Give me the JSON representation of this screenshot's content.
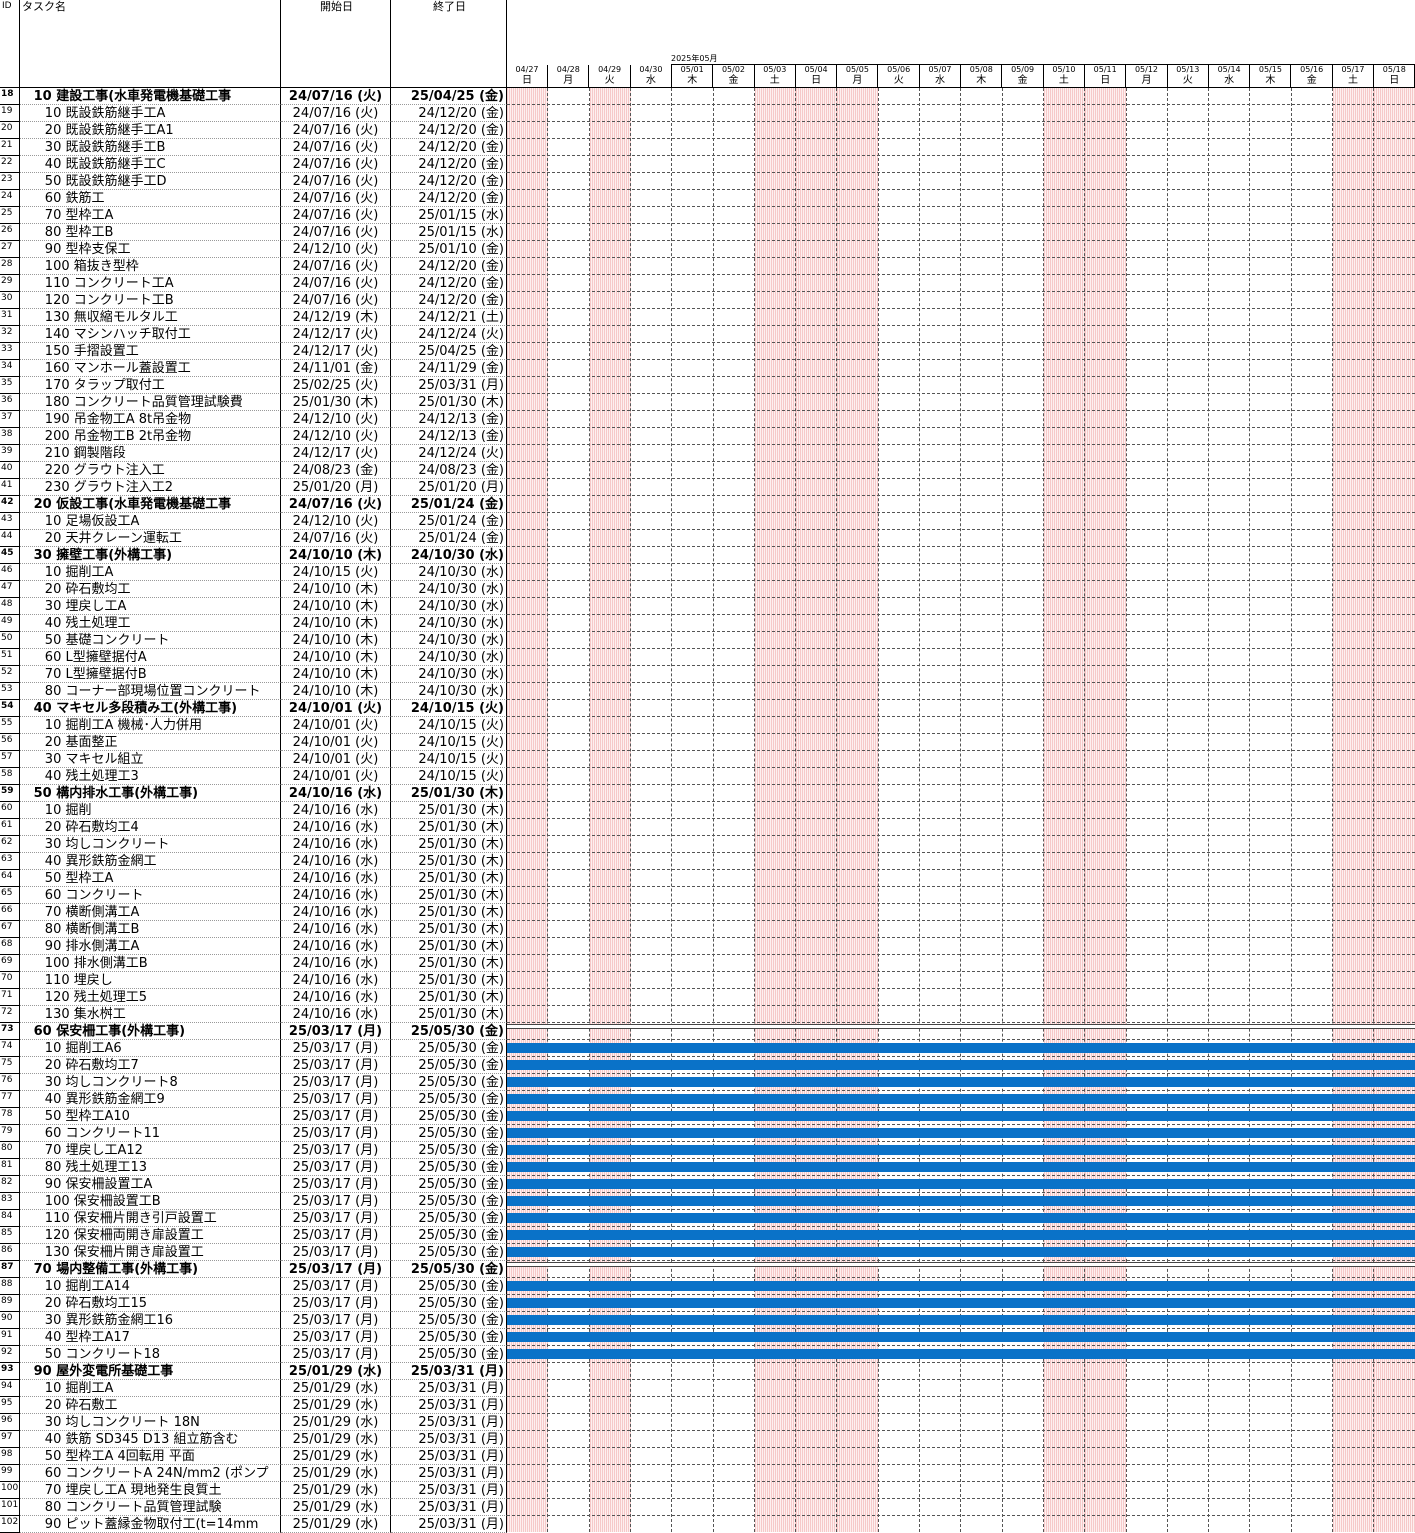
{
  "headers": {
    "id": "ID",
    "name": "タスク名",
    "start": "開始日",
    "end": "終了日",
    "month": "2025年05月"
  },
  "days": [
    {
      "date": "04/27",
      "wd": "日",
      "weekend": true
    },
    {
      "date": "04/28",
      "wd": "月",
      "weekend": false
    },
    {
      "date": "04/29",
      "wd": "火",
      "weekend": true
    },
    {
      "date": "04/30",
      "wd": "水",
      "weekend": false
    },
    {
      "date": "05/01",
      "wd": "木",
      "weekend": false
    },
    {
      "date": "05/02",
      "wd": "金",
      "weekend": false
    },
    {
      "date": "05/03",
      "wd": "土",
      "weekend": true
    },
    {
      "date": "05/04",
      "wd": "日",
      "weekend": true
    },
    {
      "date": "05/05",
      "wd": "月",
      "weekend": true
    },
    {
      "date": "05/06",
      "wd": "火",
      "weekend": false
    },
    {
      "date": "05/07",
      "wd": "水",
      "weekend": false
    },
    {
      "date": "05/08",
      "wd": "木",
      "weekend": false
    },
    {
      "date": "05/09",
      "wd": "金",
      "weekend": false
    },
    {
      "date": "05/10",
      "wd": "土",
      "weekend": true
    },
    {
      "date": "05/11",
      "wd": "日",
      "weekend": true
    },
    {
      "date": "05/12",
      "wd": "月",
      "weekend": false
    },
    {
      "date": "05/13",
      "wd": "火",
      "weekend": false
    },
    {
      "date": "05/14",
      "wd": "水",
      "weekend": false
    },
    {
      "date": "05/15",
      "wd": "木",
      "weekend": false
    },
    {
      "date": "05/16",
      "wd": "金",
      "weekend": false
    },
    {
      "date": "05/17",
      "wd": "土",
      "weekend": true
    },
    {
      "date": "05/18",
      "wd": "日",
      "weekend": true
    }
  ],
  "rows": [
    {
      "id": "18",
      "name": "10 建設工事(水車発電機基礎工事",
      "start": "24/07/16 (火)",
      "end": "25/04/25 (金)",
      "summary": true,
      "bar": false
    },
    {
      "id": "19",
      "name": "10 既設鉄筋継手工A",
      "start": "24/07/16 (火)",
      "end": "24/12/20 (金)",
      "summary": false,
      "bar": false
    },
    {
      "id": "20",
      "name": "20 既設鉄筋継手工A1",
      "start": "24/07/16 (火)",
      "end": "24/12/20 (金)",
      "summary": false,
      "bar": false
    },
    {
      "id": "21",
      "name": "30 既設鉄筋継手工B",
      "start": "24/07/16 (火)",
      "end": "24/12/20 (金)",
      "summary": false,
      "bar": false
    },
    {
      "id": "22",
      "name": "40 既設鉄筋継手工C",
      "start": "24/07/16 (火)",
      "end": "24/12/20 (金)",
      "summary": false,
      "bar": false
    },
    {
      "id": "23",
      "name": "50 既設鉄筋継手工D",
      "start": "24/07/16 (火)",
      "end": "24/12/20 (金)",
      "summary": false,
      "bar": false
    },
    {
      "id": "24",
      "name": "60 鉄筋工",
      "start": "24/07/16 (火)",
      "end": "24/12/20 (金)",
      "summary": false,
      "bar": false
    },
    {
      "id": "25",
      "name": "70 型枠工A",
      "start": "24/07/16 (火)",
      "end": "25/01/15 (水)",
      "summary": false,
      "bar": false
    },
    {
      "id": "26",
      "name": "80 型枠工B",
      "start": "24/07/16 (火)",
      "end": "25/01/15 (水)",
      "summary": false,
      "bar": false
    },
    {
      "id": "27",
      "name": "90 型枠支保工",
      "start": "24/12/10 (火)",
      "end": "25/01/10 (金)",
      "summary": false,
      "bar": false
    },
    {
      "id": "28",
      "name": "100 箱抜き型枠",
      "start": "24/07/16 (火)",
      "end": "24/12/20 (金)",
      "summary": false,
      "bar": false
    },
    {
      "id": "29",
      "name": "110 コンクリート工A",
      "start": "24/07/16 (火)",
      "end": "24/12/20 (金)",
      "summary": false,
      "bar": false
    },
    {
      "id": "30",
      "name": "120 コンクリート工B",
      "start": "24/07/16 (火)",
      "end": "24/12/20 (金)",
      "summary": false,
      "bar": false
    },
    {
      "id": "31",
      "name": "130 無収縮モルタル工",
      "start": "24/12/19 (木)",
      "end": "24/12/21 (土)",
      "summary": false,
      "bar": false
    },
    {
      "id": "32",
      "name": "140 マシンハッチ取付工",
      "start": "24/12/17 (火)",
      "end": "24/12/24 (火)",
      "summary": false,
      "bar": false
    },
    {
      "id": "33",
      "name": "150 手摺設置工",
      "start": "24/12/17 (火)",
      "end": "25/04/25 (金)",
      "summary": false,
      "bar": false
    },
    {
      "id": "34",
      "name": "160 マンホール蓋設置工",
      "start": "24/11/01 (金)",
      "end": "24/11/29 (金)",
      "summary": false,
      "bar": false
    },
    {
      "id": "35",
      "name": "170 タラップ取付工",
      "start": "25/02/25 (火)",
      "end": "25/03/31 (月)",
      "summary": false,
      "bar": false
    },
    {
      "id": "36",
      "name": "180 コンクリート品質管理試験費",
      "start": "25/01/30 (木)",
      "end": "25/01/30 (木)",
      "summary": false,
      "bar": false
    },
    {
      "id": "37",
      "name": "190 吊金物工A 8t吊金物",
      "start": "24/12/10 (火)",
      "end": "24/12/13 (金)",
      "summary": false,
      "bar": false
    },
    {
      "id": "38",
      "name": "200 吊金物工B 2t吊金物",
      "start": "24/12/10 (火)",
      "end": "24/12/13 (金)",
      "summary": false,
      "bar": false
    },
    {
      "id": "39",
      "name": "210 鋼製階段",
      "start": "24/12/17 (火)",
      "end": "24/12/24 (火)",
      "summary": false,
      "bar": false
    },
    {
      "id": "40",
      "name": "220 グラウト注入工",
      "start": "24/08/23 (金)",
      "end": "24/08/23 (金)",
      "summary": false,
      "bar": false
    },
    {
      "id": "41",
      "name": "230 グラウト注入工2",
      "start": "25/01/20 (月)",
      "end": "25/01/20 (月)",
      "summary": false,
      "bar": false
    },
    {
      "id": "42",
      "name": "20 仮設工事(水車発電機基礎工事",
      "start": "24/07/16 (火)",
      "end": "25/01/24 (金)",
      "summary": true,
      "bar": false
    },
    {
      "id": "43",
      "name": "10 足場仮設工A",
      "start": "24/12/10 (火)",
      "end": "25/01/24 (金)",
      "summary": false,
      "bar": false
    },
    {
      "id": "44",
      "name": "20 天井クレーン運転工",
      "start": "24/07/16 (火)",
      "end": "25/01/24 (金)",
      "summary": false,
      "bar": false
    },
    {
      "id": "45",
      "name": "30 擁壁工事(外構工事)",
      "start": "24/10/10 (木)",
      "end": "24/10/30 (水)",
      "summary": true,
      "bar": false
    },
    {
      "id": "46",
      "name": "10 掘削工A",
      "start": "24/10/15 (火)",
      "end": "24/10/30 (水)",
      "summary": false,
      "bar": false
    },
    {
      "id": "47",
      "name": "20 砕石敷均工",
      "start": "24/10/10 (木)",
      "end": "24/10/30 (水)",
      "summary": false,
      "bar": false
    },
    {
      "id": "48",
      "name": "30 埋戻し工A",
      "start": "24/10/10 (木)",
      "end": "24/10/30 (水)",
      "summary": false,
      "bar": false
    },
    {
      "id": "49",
      "name": "40 残土処理工",
      "start": "24/10/10 (木)",
      "end": "24/10/30 (水)",
      "summary": false,
      "bar": false
    },
    {
      "id": "50",
      "name": "50 基礎コンクリート",
      "start": "24/10/10 (木)",
      "end": "24/10/30 (水)",
      "summary": false,
      "bar": false
    },
    {
      "id": "51",
      "name": "60 L型擁壁据付A",
      "start": "24/10/10 (木)",
      "end": "24/10/30 (水)",
      "summary": false,
      "bar": false
    },
    {
      "id": "52",
      "name": "70 L型擁壁据付B",
      "start": "24/10/10 (木)",
      "end": "24/10/30 (水)",
      "summary": false,
      "bar": false
    },
    {
      "id": "53",
      "name": "80 コーナー部現場位置コンクリート",
      "start": "24/10/10 (木)",
      "end": "24/10/30 (水)",
      "summary": false,
      "bar": false
    },
    {
      "id": "54",
      "name": "40 マキセル多段積み工(外構工事)",
      "start": "24/10/01 (火)",
      "end": "24/10/15 (火)",
      "summary": true,
      "bar": false
    },
    {
      "id": "55",
      "name": "10 掘削工A 機械･人力併用",
      "start": "24/10/01 (火)",
      "end": "24/10/15 (火)",
      "summary": false,
      "bar": false
    },
    {
      "id": "56",
      "name": "20 基面整正",
      "start": "24/10/01 (火)",
      "end": "24/10/15 (火)",
      "summary": false,
      "bar": false
    },
    {
      "id": "57",
      "name": "30 マキセル組立",
      "start": "24/10/01 (火)",
      "end": "24/10/15 (火)",
      "summary": false,
      "bar": false
    },
    {
      "id": "58",
      "name": "40 残土処理工3",
      "start": "24/10/01 (火)",
      "end": "24/10/15 (火)",
      "summary": false,
      "bar": false
    },
    {
      "id": "59",
      "name": "50 構内排水工事(外構工事)",
      "start": "24/10/16 (水)",
      "end": "25/01/30 (木)",
      "summary": true,
      "bar": false
    },
    {
      "id": "60",
      "name": "10 掘削",
      "start": "24/10/16 (水)",
      "end": "25/01/30 (木)",
      "summary": false,
      "bar": false
    },
    {
      "id": "61",
      "name": "20 砕石敷均工4",
      "start": "24/10/16 (水)",
      "end": "25/01/30 (木)",
      "summary": false,
      "bar": false
    },
    {
      "id": "62",
      "name": "30 均しコンクリート",
      "start": "24/10/16 (水)",
      "end": "25/01/30 (木)",
      "summary": false,
      "bar": false
    },
    {
      "id": "63",
      "name": "40 異形鉄筋金網工",
      "start": "24/10/16 (水)",
      "end": "25/01/30 (木)",
      "summary": false,
      "bar": false
    },
    {
      "id": "64",
      "name": "50 型枠工A",
      "start": "24/10/16 (水)",
      "end": "25/01/30 (木)",
      "summary": false,
      "bar": false
    },
    {
      "id": "65",
      "name": "60 コンクリート",
      "start": "24/10/16 (水)",
      "end": "25/01/30 (木)",
      "summary": false,
      "bar": false
    },
    {
      "id": "66",
      "name": "70 横断側溝工A",
      "start": "24/10/16 (水)",
      "end": "25/01/30 (木)",
      "summary": false,
      "bar": false
    },
    {
      "id": "67",
      "name": "80 横断側溝工B",
      "start": "24/10/16 (水)",
      "end": "25/01/30 (木)",
      "summary": false,
      "bar": false
    },
    {
      "id": "68",
      "name": "90 排水側溝工A",
      "start": "24/10/16 (水)",
      "end": "25/01/30 (木)",
      "summary": false,
      "bar": false
    },
    {
      "id": "69",
      "name": "100 排水側溝工B",
      "start": "24/10/16 (水)",
      "end": "25/01/30 (木)",
      "summary": false,
      "bar": false
    },
    {
      "id": "70",
      "name": "110 埋戻し",
      "start": "24/10/16 (水)",
      "end": "25/01/30 (木)",
      "summary": false,
      "bar": false
    },
    {
      "id": "71",
      "name": "120 残土処理工5",
      "start": "24/10/16 (水)",
      "end": "25/01/30 (木)",
      "summary": false,
      "bar": false
    },
    {
      "id": "72",
      "name": "130 集水桝工",
      "start": "24/10/16 (水)",
      "end": "25/01/30 (木)",
      "summary": false,
      "bar": false
    },
    {
      "id": "73",
      "name": "60 保安柵工事(外構工事)",
      "start": "25/03/17 (月)",
      "end": "25/05/30 (金)",
      "summary": true,
      "bar": true
    },
    {
      "id": "74",
      "name": "10 掘削工A6",
      "start": "25/03/17 (月)",
      "end": "25/05/30 (金)",
      "summary": false,
      "bar": true
    },
    {
      "id": "75",
      "name": "20 砕石敷均工7",
      "start": "25/03/17 (月)",
      "end": "25/05/30 (金)",
      "summary": false,
      "bar": true
    },
    {
      "id": "76",
      "name": "30 均しコンクリート8",
      "start": "25/03/17 (月)",
      "end": "25/05/30 (金)",
      "summary": false,
      "bar": true
    },
    {
      "id": "77",
      "name": "40 異形鉄筋金網工9",
      "start": "25/03/17 (月)",
      "end": "25/05/30 (金)",
      "summary": false,
      "bar": true
    },
    {
      "id": "78",
      "name": "50 型枠工A10",
      "start": "25/03/17 (月)",
      "end": "25/05/30 (金)",
      "summary": false,
      "bar": true
    },
    {
      "id": "79",
      "name": "60 コンクリート11",
      "start": "25/03/17 (月)",
      "end": "25/05/30 (金)",
      "summary": false,
      "bar": true
    },
    {
      "id": "80",
      "name": "70 埋戻し工A12",
      "start": "25/03/17 (月)",
      "end": "25/05/30 (金)",
      "summary": false,
      "bar": true
    },
    {
      "id": "81",
      "name": "80 残土処理工13",
      "start": "25/03/17 (月)",
      "end": "25/05/30 (金)",
      "summary": false,
      "bar": true
    },
    {
      "id": "82",
      "name": "90 保安柵設置工A",
      "start": "25/03/17 (月)",
      "end": "25/05/30 (金)",
      "summary": false,
      "bar": true
    },
    {
      "id": "83",
      "name": "100 保安柵設置工B",
      "start": "25/03/17 (月)",
      "end": "25/05/30 (金)",
      "summary": false,
      "bar": true
    },
    {
      "id": "84",
      "name": "110 保安柵片開き引戸設置工",
      "start": "25/03/17 (月)",
      "end": "25/05/30 (金)",
      "summary": false,
      "bar": true
    },
    {
      "id": "85",
      "name": "120 保安柵両開き扉設置工",
      "start": "25/03/17 (月)",
      "end": "25/05/30 (金)",
      "summary": false,
      "bar": true
    },
    {
      "id": "86",
      "name": "130 保安柵片開き扉設置工",
      "start": "25/03/17 (月)",
      "end": "25/05/30 (金)",
      "summary": false,
      "bar": true
    },
    {
      "id": "87",
      "name": "70 場内整備工事(外構工事)",
      "start": "25/03/17 (月)",
      "end": "25/05/30 (金)",
      "summary": true,
      "bar": true
    },
    {
      "id": "88",
      "name": "10 掘削工A14",
      "start": "25/03/17 (月)",
      "end": "25/05/30 (金)",
      "summary": false,
      "bar": true
    },
    {
      "id": "89",
      "name": "20 砕石敷均工15",
      "start": "25/03/17 (月)",
      "end": "25/05/30 (金)",
      "summary": false,
      "bar": true
    },
    {
      "id": "90",
      "name": "30 異形鉄筋金網工16",
      "start": "25/03/17 (月)",
      "end": "25/05/30 (金)",
      "summary": false,
      "bar": true
    },
    {
      "id": "91",
      "name": "40 型枠工A17",
      "start": "25/03/17 (月)",
      "end": "25/05/30 (金)",
      "summary": false,
      "bar": true
    },
    {
      "id": "92",
      "name": "50 コンクリート18",
      "start": "25/03/17 (月)",
      "end": "25/05/30 (金)",
      "summary": false,
      "bar": true
    },
    {
      "id": "93",
      "name": "90 屋外変電所基礎工事",
      "start": "25/01/29 (水)",
      "end": "25/03/31 (月)",
      "summary": true,
      "bar": false
    },
    {
      "id": "94",
      "name": "10 掘削工A",
      "start": "25/01/29 (水)",
      "end": "25/03/31 (月)",
      "summary": false,
      "bar": false
    },
    {
      "id": "95",
      "name": "20 砕石敷工",
      "start": "25/01/29 (水)",
      "end": "25/03/31 (月)",
      "summary": false,
      "bar": false
    },
    {
      "id": "96",
      "name": "30 均しコンクリート 18N",
      "start": "25/01/29 (水)",
      "end": "25/03/31 (月)",
      "summary": false,
      "bar": false
    },
    {
      "id": "97",
      "name": "40 鉄筋 SD345 D13 組立筋含む",
      "start": "25/01/29 (水)",
      "end": "25/03/31 (月)",
      "summary": false,
      "bar": false
    },
    {
      "id": "98",
      "name": "50 型枠工A 4回転用 平面",
      "start": "25/01/29 (水)",
      "end": "25/03/31 (月)",
      "summary": false,
      "bar": false
    },
    {
      "id": "99",
      "name": "60 コンクリートA 24N/mm2 (ポンプ",
      "start": "25/01/29 (水)",
      "end": "25/03/31 (月)",
      "summary": false,
      "bar": false
    },
    {
      "id": "100",
      "name": "70 埋戻し工A 現地発生良質土",
      "start": "25/01/29 (水)",
      "end": "25/03/31 (月)",
      "summary": false,
      "bar": false
    },
    {
      "id": "101",
      "name": "80 コンクリート品質管理試験",
      "start": "25/01/29 (水)",
      "end": "25/03/31 (月)",
      "summary": false,
      "bar": false
    },
    {
      "id": "102",
      "name": "90 ピット蓋縁金物取付工(t=14mm",
      "start": "25/01/29 (水)",
      "end": "25/03/31 (月)",
      "summary": false,
      "bar": false
    }
  ],
  "colors": {
    "bar": "#0a72c8",
    "weekend": "#f6c9c9"
  }
}
